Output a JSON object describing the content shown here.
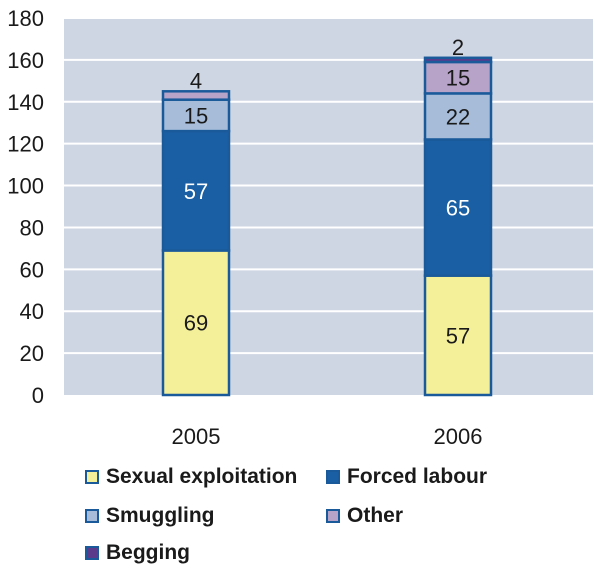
{
  "colors": {
    "plot_background": "#cfd6e3",
    "gridline": "#ffffff",
    "bar_outline": "#1a5a9a"
  },
  "chart_data": {
    "type": "bar",
    "stacked": true,
    "categories": [
      "2005",
      "2006"
    ],
    "ylim": [
      0,
      180
    ],
    "yticks": [
      "0",
      "20",
      "40",
      "60",
      "80",
      "100",
      "120",
      "140",
      "160",
      "180"
    ],
    "grid": true,
    "legend_position": "bottom",
    "series": [
      {
        "name": "Sexual exploitation",
        "values": [
          69,
          57
        ],
        "color": "#f4f09a",
        "label_color": "#1a1a1a"
      },
      {
        "name": "Forced labour",
        "values": [
          57,
          65
        ],
        "color": "#1a5fa3",
        "label_color": "#ffffff"
      },
      {
        "name": "Smuggling",
        "values": [
          15,
          22
        ],
        "color": "#a6bcd9",
        "label_color": "#1a1a1a"
      },
      {
        "name": "Other",
        "values": [
          4,
          15
        ],
        "color": "#b7a2c8",
        "label_color": "#1a1a1a"
      },
      {
        "name": "Begging",
        "values": [
          0,
          2
        ],
        "color": "#5b3a8c",
        "label_color": "#1a1a1a"
      }
    ]
  }
}
